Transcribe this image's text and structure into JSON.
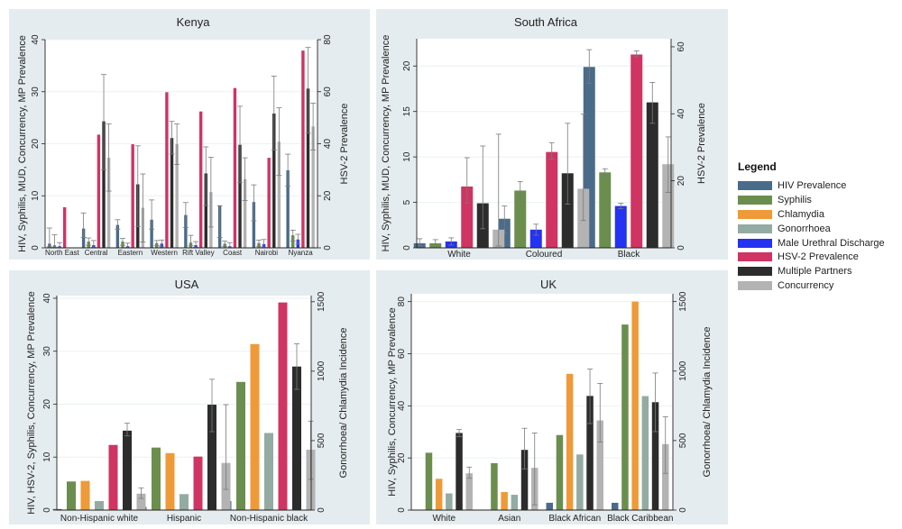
{
  "legend": {
    "title": "Legend",
    "items": [
      {
        "label": "HIV Prevalence",
        "color": "#4a6b8a"
      },
      {
        "label": "Syphilis",
        "color": "#6b8e4e"
      },
      {
        "label": "Chlamydia",
        "color": "#ef9a38"
      },
      {
        "label": "Gonorrhoea",
        "color": "#93aba3"
      },
      {
        "label": "Male Urethral Discharge",
        "color": "#2432f2"
      },
      {
        "label": "HSV-2 Prevalence",
        "color": "#cf3462"
      },
      {
        "label": "Multiple Partners",
        "color": "#2c2c2c"
      },
      {
        "label": "Concurrency",
        "color": "#b3b3b3"
      }
    ]
  },
  "chart_data": [
    {
      "type": "bar",
      "title": "Kenya",
      "ylabel": "HIV, Syphilis, MUD, Concurrency, MP Prevalence",
      "y2label": "HSV-2 Prevalence",
      "ylim": [
        0,
        40
      ],
      "y2lim": [
        0,
        80
      ],
      "yticks": [
        0,
        10,
        20,
        30,
        40
      ],
      "y2ticks": [
        0,
        20,
        40,
        60,
        80
      ],
      "categories": [
        "North East",
        "Central",
        "Eastern",
        "Western",
        "Rift Valley",
        "Coast",
        "Nairobi",
        "Nyanza"
      ],
      "series": [
        {
          "name": "HIV Prevalence",
          "axis": "left",
          "values": [
            0.8,
            3.7,
            4.4,
            5.4,
            6.3,
            8.1,
            8.8,
            14.9
          ],
          "err": [
            [
              0.2,
              3.8
            ],
            [
              2.0,
              6.7
            ],
            [
              3.6,
              5.4
            ],
            [
              3.6,
              9.2
            ],
            [
              3.9,
              8.7
            ],
            [
              2.0,
              8.1
            ],
            [
              5.2,
              12.1
            ],
            [
              11.9,
              18.0
            ]
          ]
        },
        {
          "name": "Syphilis",
          "axis": "left",
          "values": [
            0.5,
            1.2,
            1.2,
            0.9,
            1.0,
            0.8,
            0.9,
            2.4
          ],
          "err": [
            [
              0.1,
              2.5
            ],
            [
              0.5,
              1.9
            ],
            [
              0.5,
              1.8
            ],
            [
              0.4,
              1.4
            ],
            [
              0.4,
              2.4
            ],
            [
              0.3,
              1.3
            ],
            [
              0.3,
              1.5
            ],
            [
              1.3,
              3.4
            ]
          ]
        },
        {
          "name": "Male Urethral Discharge",
          "axis": "left",
          "values": [
            0.3,
            0.5,
            0.3,
            0.8,
            0.5,
            0.3,
            0.7,
            1.6
          ],
          "err": [
            [
              0.05,
              1.0
            ],
            [
              0.1,
              1.4
            ],
            [
              0.05,
              0.9
            ],
            [
              0.2,
              1.5
            ],
            [
              0.1,
              1.2
            ],
            [
              0.05,
              1.0
            ],
            [
              0.1,
              1.6
            ],
            [
              0.7,
              2.6
            ]
          ]
        },
        {
          "name": "HSV-2 Prevalence",
          "axis": "right",
          "values": [
            15.6,
            43.5,
            39.8,
            59.8,
            52.4,
            61.4,
            34.6,
            75.8
          ],
          "err": null
        },
        {
          "name": "Multiple Partners",
          "axis": "left",
          "values": [
            0,
            24.3,
            12.2,
            21.1,
            14.3,
            19.8,
            25.8,
            30.6
          ],
          "err": [
            [
              0,
              0
            ],
            [
              15.0,
              33.3
            ],
            [
              4.1,
              19.6
            ],
            [
              18.0,
              24.3
            ],
            [
              8.1,
              19.4
            ],
            [
              12.5,
              27.2
            ],
            [
              18.8,
              33.0
            ],
            [
              22.0,
              38.5
            ]
          ]
        },
        {
          "name": "Concurrency",
          "axis": "left",
          "values": [
            0,
            17.3,
            7.7,
            19.9,
            10.7,
            13.2,
            20.4,
            23.3
          ],
          "err": [
            [
              0,
              0
            ],
            [
              10.9,
              23.8
            ],
            [
              1.1,
              14.2
            ],
            [
              16.0,
              23.8
            ],
            [
              4.0,
              17.4
            ],
            [
              9.1,
              17.3
            ],
            [
              13.9,
              26.9
            ],
            [
              18.8,
              27.8
            ]
          ]
        }
      ]
    },
    {
      "type": "bar",
      "title": "South Africa",
      "ylabel": "HIV, Syphilis, MUD, Concurrency, MP Prevalence",
      "y2label": "HSV-2 Prevalence",
      "ylim": [
        0,
        23
      ],
      "y2lim": [
        0,
        62.4
      ],
      "yticks": [
        0,
        5,
        10,
        15,
        20
      ],
      "y2ticks": [
        0,
        20,
        40,
        60
      ],
      "categories": [
        "White",
        "Coloured",
        "Black"
      ],
      "series": [
        {
          "name": "HIV Prevalence",
          "axis": "left",
          "values": [
            0.5,
            3.2,
            19.9
          ],
          "err": [
            [
              0.2,
              1.0
            ],
            [
              1.6,
              4.6
            ],
            [
              18.1,
              21.8
            ]
          ]
        },
        {
          "name": "Syphilis",
          "axis": "left",
          "values": [
            0.5,
            6.3,
            8.3
          ],
          "err": [
            [
              0.2,
              0.9
            ],
            [
              5.3,
              7.3
            ],
            [
              7.9,
              8.7
            ]
          ]
        },
        {
          "name": "Male Urethral Discharge",
          "axis": "left",
          "values": [
            0.7,
            2.0,
            4.6
          ],
          "err": [
            [
              0.3,
              1.1
            ],
            [
              1.4,
              2.6
            ],
            [
              4.3,
              4.9
            ]
          ]
        },
        {
          "name": "HSV-2 Prevalence",
          "axis": "right",
          "values": [
            18.3,
            28.6,
            57.7
          ],
          "err": [
            [
              13.4,
              26.9
            ],
            [
              26.5,
              31.4
            ],
            [
              57.0,
              58.8
            ]
          ]
        },
        {
          "name": "Multiple Partners",
          "axis": "left",
          "values": [
            4.9,
            8.2,
            16.0
          ],
          "err": [
            [
              2.1,
              11.2
            ],
            [
              4.8,
              13.7
            ],
            [
              13.7,
              18.2
            ]
          ]
        },
        {
          "name": "Concurrency",
          "axis": "left",
          "values": [
            2.0,
            6.5,
            9.2
          ],
          "err": [
            [
              0.2,
              12.5
            ],
            [
              3.0,
              14.7
            ],
            [
              6.1,
              12.2
            ]
          ]
        }
      ]
    },
    {
      "type": "bar",
      "title": "USA",
      "ylabel": "HIV, HSV-2, Syphilis, Concurrency, MP Prevalence",
      "y2label": "Gonorrhoea/ Chlamydia Incidence",
      "ylim": [
        0,
        40.5
      ],
      "y2lim": [
        0,
        1544
      ],
      "yticks": [
        0,
        10,
        20,
        30,
        40
      ],
      "y2ticks": [
        0,
        500,
        1000,
        1500
      ],
      "categories": [
        "Non-Hispanic white",
        "Hispanic",
        "Non-Hispanic black"
      ],
      "series": [
        {
          "name": "HIV Prevalence",
          "axis": "left",
          "values": [
            0.2,
            0.6,
            1.7
          ],
          "err": null
        },
        {
          "name": "Syphilis",
          "axis": "left",
          "values": [
            5.4,
            11.8,
            24.2
          ],
          "err": null
        },
        {
          "name": "Chlamydia",
          "axis": "right",
          "values": [
            210,
            410,
            1195
          ],
          "err": null
        },
        {
          "name": "Gonorrhoea",
          "axis": "right",
          "values": [
            65,
            115,
            555
          ],
          "err": null
        },
        {
          "name": "HSV-2 Prevalence",
          "axis": "left",
          "values": [
            12.3,
            10.1,
            39.2
          ],
          "err": null
        },
        {
          "name": "Multiple Partners",
          "axis": "left",
          "values": [
            15.0,
            19.9,
            27.1
          ],
          "err": [
            [
              14.0,
              16.4
            ],
            [
              14.8,
              24.7
            ],
            [
              22.8,
              31.4
            ]
          ]
        },
        {
          "name": "Concurrency",
          "axis": "left",
          "values": [
            3.1,
            8.9,
            11.4
          ],
          "err": [
            [
              2.2,
              4.2
            ],
            [
              3.9,
              19.9
            ],
            [
              5.8,
              16.8
            ]
          ]
        }
      ]
    },
    {
      "type": "bar",
      "title": "UK",
      "ylabel": "HIV, Syphilis, Concurrency, MP Prevalence",
      "y2label": "Gonorrhoea/ Chlamydia Incidence",
      "ylim": [
        0,
        83
      ],
      "y2lim": [
        0,
        1556
      ],
      "yticks": [
        0,
        20,
        40,
        60,
        80
      ],
      "y2ticks": [
        0,
        500,
        1000,
        1500
      ],
      "categories": [
        "White",
        "Asian",
        "Black African",
        "Black Caribbean"
      ],
      "series": [
        {
          "name": "HIV Prevalence",
          "axis": "left",
          "values": [
            0,
            0,
            2.8,
            2.8
          ],
          "err": null
        },
        {
          "name": "Syphilis",
          "axis": "left",
          "values": [
            22.0,
            18.0,
            28.8,
            71.2
          ],
          "err": null
        },
        {
          "name": "Chlamydia",
          "axis": "right",
          "values": [
            225,
            130,
            980,
            1500
          ],
          "err": null
        },
        {
          "name": "Gonorrhoea",
          "axis": "right",
          "values": [
            120,
            110,
            400,
            820
          ],
          "err": null
        },
        {
          "name": "Multiple Partners",
          "axis": "left",
          "values": [
            29.6,
            23.1,
            43.8,
            41.4
          ],
          "err": [
            [
              28.2,
              30.9
            ],
            [
              15.8,
              31.4
            ],
            [
              33.2,
              54.1
            ],
            [
              30.1,
              52.6
            ]
          ]
        },
        {
          "name": "Concurrency",
          "axis": "left",
          "values": [
            14.1,
            16.2,
            34.4,
            25.3
          ],
          "err": [
            [
              12.2,
              16.5
            ],
            [
              2.0,
              29.6
            ],
            [
              26.1,
              48.6
            ],
            [
              14.1,
              35.8
            ]
          ]
        }
      ]
    }
  ]
}
